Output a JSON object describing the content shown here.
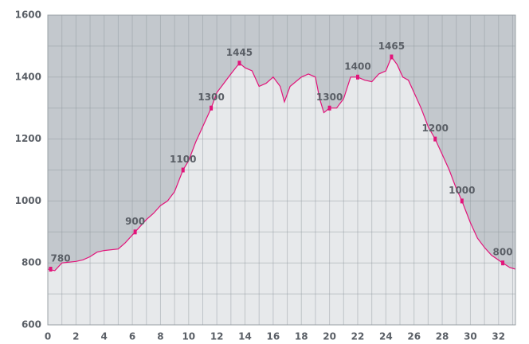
{
  "chart_data": {
    "type": "area",
    "x": [
      0,
      0.5,
      1,
      2,
      2.5,
      3,
      3.5,
      4,
      5,
      5.5,
      6,
      6.2,
      7,
      7.5,
      8,
      8.5,
      9,
      9.6,
      10,
      10.5,
      11,
      11.6,
      12,
      12.5,
      13,
      13.6,
      14,
      14.5,
      15,
      15.5,
      16,
      16.5,
      16.8,
      17.2,
      18,
      18.5,
      19,
      19.3,
      19.6,
      20,
      20.5,
      21,
      21.5,
      22,
      22.5,
      23,
      23.5,
      24,
      24.4,
      24.8,
      25.2,
      25.6,
      26,
      26.5,
      27,
      27.5,
      28,
      28.5,
      29,
      29.4,
      30,
      30.5,
      31,
      31.5,
      32.3,
      32.8,
      33.2
    ],
    "values": [
      780,
      775,
      800,
      805,
      810,
      820,
      835,
      840,
      845,
      865,
      890,
      900,
      940,
      960,
      985,
      1000,
      1030,
      1100,
      1130,
      1190,
      1240,
      1300,
      1350,
      1380,
      1410,
      1445,
      1430,
      1420,
      1370,
      1380,
      1400,
      1370,
      1320,
      1370,
      1400,
      1410,
      1400,
      1330,
      1285,
      1300,
      1300,
      1330,
      1400,
      1400,
      1390,
      1385,
      1410,
      1420,
      1465,
      1440,
      1400,
      1390,
      1350,
      1300,
      1240,
      1200,
      1150,
      1100,
      1040,
      1000,
      930,
      880,
      850,
      825,
      800,
      785,
      780
    ],
    "color": "#e2147a",
    "xlim": [
      0,
      33.2
    ],
    "ylim": [
      600,
      1600
    ],
    "xticks": [
      0,
      2,
      4,
      6,
      8,
      10,
      12,
      14,
      16,
      18,
      20,
      22,
      24,
      26,
      28,
      30,
      32
    ],
    "yticks": [
      600,
      800,
      1000,
      1200,
      1400,
      1600
    ],
    "grid": true,
    "annotations": [
      {
        "x": 0.2,
        "value": 780
      },
      {
        "x": 6.2,
        "value": 900
      },
      {
        "x": 9.6,
        "value": 1100
      },
      {
        "x": 11.6,
        "value": 1300
      },
      {
        "x": 13.6,
        "value": 1445
      },
      {
        "x": 20,
        "value": 1300
      },
      {
        "x": 22,
        "value": 1400
      },
      {
        "x": 24.4,
        "value": 1465
      },
      {
        "x": 27.5,
        "value": 1200
      },
      {
        "x": 29.4,
        "value": 1000
      },
      {
        "x": 32.3,
        "value": 800
      }
    ]
  }
}
